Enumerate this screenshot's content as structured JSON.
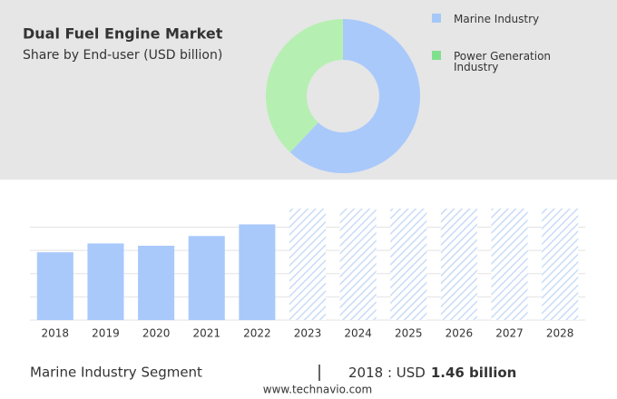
{
  "title": "Dual Fuel Engine Market",
  "subtitle": "Share by End-user (USD billion)",
  "chart_data": [
    {
      "type": "pie",
      "categories": [
        "Marine Industry",
        "Power Generation Industry"
      ],
      "values": [
        62,
        38
      ],
      "colors": [
        "#a9c9fb",
        "#b6efb2"
      ],
      "legend_colors": [
        "#a6c8f8",
        "#80e08e"
      ]
    },
    {
      "type": "bar",
      "categories": [
        "2018",
        "2019",
        "2020",
        "2021",
        "2022",
        "2023",
        "2024",
        "2025",
        "2026",
        "2027",
        "2028"
      ],
      "values": [
        1.46,
        1.65,
        1.6,
        1.81,
        2.06,
        null,
        null,
        null,
        null,
        null,
        null
      ],
      "color": "#a9c9fb",
      "forecast_color": "#c9dbf7",
      "ylim": [
        0,
        2.4
      ],
      "yticks": [
        0,
        0.5,
        1,
        1.5,
        2
      ],
      "grid": true
    }
  ],
  "footer": {
    "segment": "Marine Industry Segment",
    "year_label": "2018 : USD",
    "value_label": "1.46 billion",
    "source": "www.technavio.com"
  }
}
